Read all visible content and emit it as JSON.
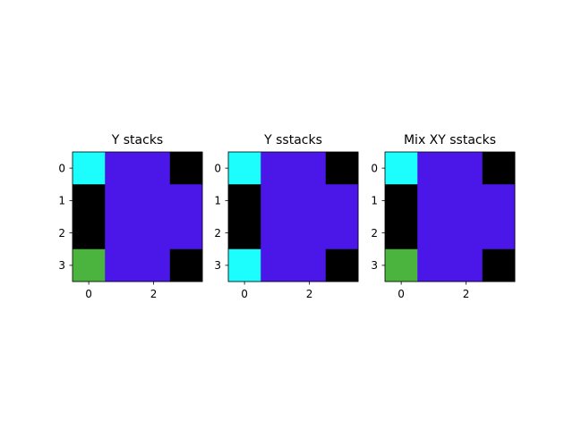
{
  "chart_data": [
    {
      "type": "heatmap",
      "title": "Y stacks",
      "rows": 4,
      "cols": 4,
      "x_ticks": [
        0,
        2
      ],
      "y_ticks": [
        0,
        1,
        2,
        3
      ],
      "xlim": [
        -0.5,
        3.5
      ],
      "ylim": [
        3.5,
        -0.5
      ],
      "cells": [
        [
          "#1cfdfd",
          "#4b17e9",
          "#4b17e9",
          "#000000"
        ],
        [
          "#000000",
          "#4b17e9",
          "#4b17e9",
          "#4b17e9"
        ],
        [
          "#000000",
          "#4b17e9",
          "#4b17e9",
          "#4b17e9"
        ],
        [
          "#4ab43e",
          "#4b17e9",
          "#4b17e9",
          "#000000"
        ]
      ]
    },
    {
      "type": "heatmap",
      "title": "Y sstacks",
      "rows": 4,
      "cols": 4,
      "x_ticks": [
        0,
        2
      ],
      "y_ticks": [
        0,
        1,
        2,
        3
      ],
      "xlim": [
        -0.5,
        3.5
      ],
      "ylim": [
        3.5,
        -0.5
      ],
      "cells": [
        [
          "#1cfdfd",
          "#4b17e9",
          "#4b17e9",
          "#000000"
        ],
        [
          "#000000",
          "#4b17e9",
          "#4b17e9",
          "#4b17e9"
        ],
        [
          "#000000",
          "#4b17e9",
          "#4b17e9",
          "#4b17e9"
        ],
        [
          "#1cfdfd",
          "#4b17e9",
          "#4b17e9",
          "#000000"
        ]
      ]
    },
    {
      "type": "heatmap",
      "title": "Mix XY sstacks",
      "rows": 4,
      "cols": 4,
      "x_ticks": [
        0,
        2
      ],
      "y_ticks": [
        0,
        1,
        2,
        3
      ],
      "xlim": [
        -0.5,
        3.5
      ],
      "ylim": [
        3.5,
        -0.5
      ],
      "cells": [
        [
          "#1cfdfd",
          "#4b17e9",
          "#4b17e9",
          "#000000"
        ],
        [
          "#000000",
          "#4b17e9",
          "#4b17e9",
          "#4b17e9"
        ],
        [
          "#000000",
          "#4b17e9",
          "#4b17e9",
          "#4b17e9"
        ],
        [
          "#4ab43e",
          "#4b17e9",
          "#4b17e9",
          "#000000"
        ]
      ]
    }
  ]
}
